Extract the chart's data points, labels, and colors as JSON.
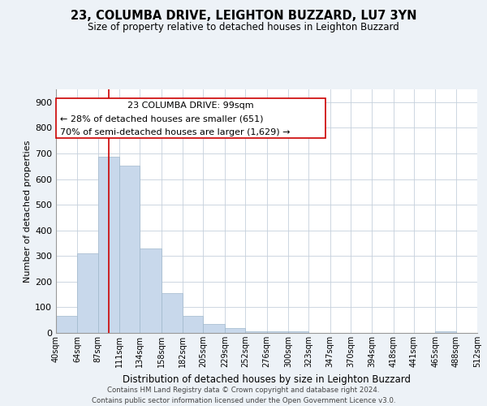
{
  "title": "23, COLUMBA DRIVE, LEIGHTON BUZZARD, LU7 3YN",
  "subtitle": "Size of property relative to detached houses in Leighton Buzzard",
  "xlabel": "Distribution of detached houses by size in Leighton Buzzard",
  "ylabel": "Number of detached properties",
  "bar_edges": [
    40,
    64,
    87,
    111,
    134,
    158,
    182,
    205,
    229,
    252,
    276,
    300,
    323,
    347,
    370,
    394,
    418,
    441,
    465,
    488,
    512
  ],
  "bar_heights": [
    65,
    310,
    687,
    651,
    330,
    155,
    65,
    35,
    18,
    5,
    7,
    5,
    0,
    0,
    0,
    0,
    0,
    0,
    5,
    0,
    0
  ],
  "bar_color": "#c8d8eb",
  "bar_edgecolor": "#a0b8cc",
  "vline_x": 99,
  "vline_color": "#cc0000",
  "ann_line1": "23 COLUMBA DRIVE: 99sqm",
  "ann_line2": "← 28% of detached houses are smaller (651)",
  "ann_line3": "70% of semi-detached houses are larger (1,629) →",
  "ylim": [
    0,
    950
  ],
  "yticks": [
    0,
    100,
    200,
    300,
    400,
    500,
    600,
    700,
    800,
    900
  ],
  "xtick_labels": [
    "40sqm",
    "64sqm",
    "87sqm",
    "111sqm",
    "134sqm",
    "158sqm",
    "182sqm",
    "205sqm",
    "229sqm",
    "252sqm",
    "276sqm",
    "300sqm",
    "323sqm",
    "347sqm",
    "370sqm",
    "394sqm",
    "418sqm",
    "441sqm",
    "465sqm",
    "488sqm",
    "512sqm"
  ],
  "footer_line1": "Contains HM Land Registry data © Crown copyright and database right 2024.",
  "footer_line2": "Contains public sector information licensed under the Open Government Licence v3.0.",
  "bg_color": "#edf2f7",
  "plot_bg_color": "#ffffff",
  "grid_color": "#c5d0dc"
}
